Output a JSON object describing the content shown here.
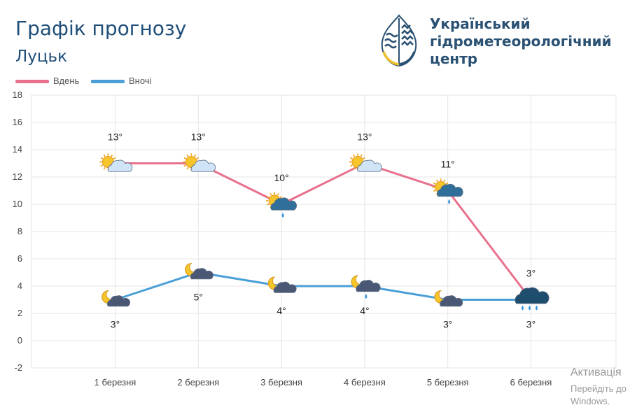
{
  "header": {
    "title": "Графік прогнозу",
    "city": "Луцьк"
  },
  "logo": {
    "line1": "Український",
    "line2": "гідрометеорологічний",
    "line3": "центр"
  },
  "watermark": {
    "line1": "Активація",
    "line2": "Перейдіть до",
    "line3": "Windows."
  },
  "colors": {
    "day": "#e8718d",
    "night": "#4a9fd8",
    "title": "#1f4e79"
  },
  "chart_data": {
    "type": "line",
    "title": "",
    "xlabel": "",
    "ylabel": "",
    "categories": [
      "1 березня",
      "2 березня",
      "3 березня",
      "4 березня",
      "5 березня",
      "6 березня"
    ],
    "ylim": [
      -2,
      18
    ],
    "yticks": [
      -2,
      0,
      2,
      4,
      6,
      8,
      10,
      12,
      14,
      16,
      18
    ],
    "grid": true,
    "legend_position": "top-left",
    "series": [
      {
        "name": "Вдень",
        "values": [
          13,
          13,
          10,
          13,
          11,
          3
        ],
        "labels": [
          "13°",
          "13°",
          "10°",
          "13°",
          "11°",
          "3°"
        ],
        "icons": [
          "sun-cloud-icon",
          "sun-cloud-icon",
          "sun-rain-icon",
          "sun-cloud-icon",
          "sun-rain-icon",
          "heavy-rain-icon"
        ]
      },
      {
        "name": "Вночі",
        "values": [
          3,
          5,
          4,
          4,
          3,
          3
        ],
        "labels": [
          "3°",
          "5°",
          "4°",
          "4°",
          "3°",
          "3°"
        ],
        "icons": [
          "moon-cloud-icon",
          "moon-cloud-icon",
          "moon-cloud-icon",
          "moon-rain-icon",
          "moon-cloud-icon",
          ""
        ]
      }
    ]
  }
}
